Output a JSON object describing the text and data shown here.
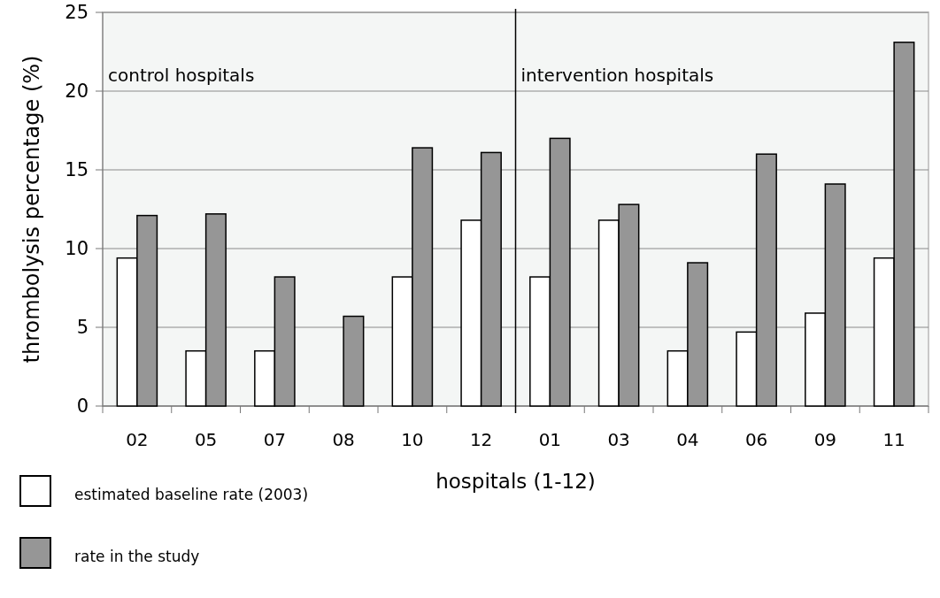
{
  "chart_data": {
    "type": "bar",
    "xlabel": "hospitals (1-12)",
    "ylabel": "thrombolysis percentage (%)",
    "categories": [
      "02",
      "05",
      "07",
      "08",
      "10",
      "12",
      "01",
      "03",
      "04",
      "06",
      "09",
      "11"
    ],
    "series": [
      {
        "name": "estimated baseline rate (2003)",
        "color": "#ffffff",
        "values": [
          9.4,
          3.5,
          3.5,
          null,
          8.2,
          11.8,
          8.2,
          11.8,
          3.5,
          4.7,
          5.9,
          9.4
        ]
      },
      {
        "name": "rate in the study",
        "color": "#969696",
        "values": [
          12.1,
          12.2,
          8.2,
          5.7,
          16.4,
          16.1,
          17.0,
          12.8,
          9.1,
          16.0,
          14.1,
          23.1
        ]
      }
    ],
    "ylim": [
      0,
      25
    ],
    "yticks": [
      0,
      5,
      10,
      15,
      20,
      25
    ],
    "grid": "y",
    "legend": "bottom left",
    "ref_lines": [
      {
        "axis": "x",
        "value": "01",
        "color": "#000000"
      }
    ],
    "annotations": [
      "control hospitals",
      "intervention hospitals"
    ]
  }
}
